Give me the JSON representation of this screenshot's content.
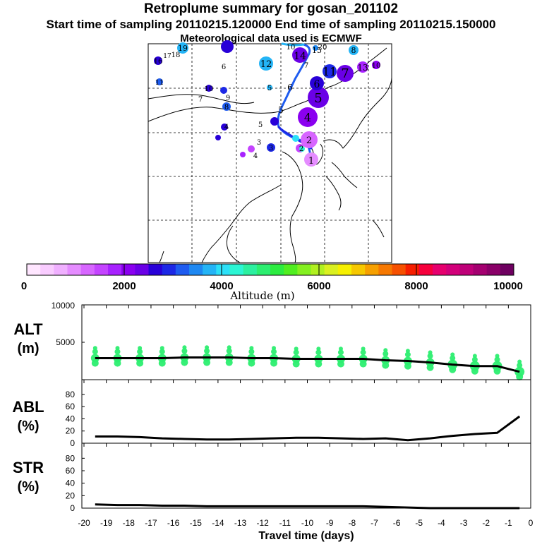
{
  "header": {
    "title": "Retroplume summary for gosan_201102",
    "times": "Start time of sampling 20110215.120000     End time of sampling 20110215.150000",
    "met": "Meteorological data used is ECMWF"
  },
  "colorbar": {
    "label": "Altitude (m)",
    "ticks": [
      "0",
      "2000",
      "4000",
      "6000",
      "8000",
      "10000"
    ],
    "colors": [
      "#ffe6ff",
      "#f9ccff",
      "#f0b0ff",
      "#e58cff",
      "#d766ff",
      "#c444ff",
      "#a822ff",
      "#8a00f0",
      "#6a00e6",
      "#2800d8",
      "#1c28e6",
      "#1e5cf0",
      "#1e88f2",
      "#24b4f6",
      "#2ce0f8",
      "#2cf6d4",
      "#2cf0a0",
      "#2cee70",
      "#2cec40",
      "#50ee20",
      "#84f020",
      "#b0f020",
      "#daf020",
      "#f6f000",
      "#f6c800",
      "#f6a000",
      "#f67800",
      "#f65000",
      "#f61e00",
      "#f6003c",
      "#e6006e",
      "#d2007a",
      "#be0078",
      "#a40070",
      "#8a0068",
      "#6e0060"
    ]
  },
  "map": {
    "labels": [
      "1",
      "2",
      "3",
      "4",
      "5",
      "6",
      "7",
      "8",
      "9",
      "10",
      "11",
      "12",
      "13",
      "14",
      "15",
      "16",
      "17",
      "18",
      "19",
      "20"
    ]
  },
  "panels": {
    "alt": {
      "label_top": "ALT",
      "label_bottom": "(m)",
      "yticks": [
        "10000",
        "5000"
      ]
    },
    "abl": {
      "label_top": "ABL",
      "label_bottom": "(%)",
      "yticks": [
        "80",
        "60",
        "40",
        "20",
        "0"
      ]
    },
    "str": {
      "label_top": "STR",
      "label_bottom": "(%)",
      "yticks": [
        "80",
        "60",
        "40",
        "20",
        "0"
      ]
    }
  },
  "xaxis": {
    "label": "Travel time (days)",
    "ticks": [
      "-20",
      "-19",
      "-18",
      "-17",
      "-16",
      "-15",
      "-14",
      "-13",
      "-12",
      "-11",
      "-10",
      "-9",
      "-8",
      "-7",
      "-6",
      "-5",
      "-4",
      "-3",
      "-2",
      "-1",
      "0"
    ]
  },
  "chart_data": [
    {
      "type": "line",
      "name": "ALT",
      "ylabel": "ALT (m)",
      "xlabel": "Travel time (days)",
      "ylim": [
        0,
        10000
      ],
      "x": [
        -0.5,
        -1.5,
        -2.5,
        -3.5,
        -4.5,
        -5.5,
        -6.5,
        -7.5,
        -8.5,
        -9.5,
        -10.5,
        -11.5,
        -12.5,
        -13.5,
        -14.5,
        -15.5,
        -16.5,
        -17.5,
        -18.5,
        -19.5
      ],
      "values": [
        1100,
        1900,
        1900,
        2100,
        2400,
        2600,
        2700,
        2900,
        2900,
        2900,
        2900,
        3000,
        3000,
        3100,
        3100,
        3100,
        3000,
        3000,
        3000,
        3000
      ]
    },
    {
      "type": "line",
      "name": "ABL",
      "ylabel": "ABL (%)",
      "xlabel": "Travel time (days)",
      "ylim": [
        0,
        100
      ],
      "x": [
        -0.5,
        -1.5,
        -2.5,
        -3.5,
        -4.5,
        -5.5,
        -6.5,
        -7.5,
        -8.5,
        -9.5,
        -10.5,
        -11.5,
        -12.5,
        -13.5,
        -14.5,
        -15.5,
        -16.5,
        -17.5,
        -18.5,
        -19.5
      ],
      "values": [
        44,
        17,
        15,
        12,
        8,
        5,
        8,
        7,
        8,
        9,
        9,
        8,
        7,
        6,
        6,
        7,
        8,
        10,
        11,
        11
      ]
    },
    {
      "type": "line",
      "name": "STR",
      "ylabel": "STR (%)",
      "xlabel": "Travel time (days)",
      "ylim": [
        0,
        100
      ],
      "x": [
        -0.5,
        -1.5,
        -2.5,
        -3.5,
        -4.5,
        -5.5,
        -6.5,
        -7.5,
        -8.5,
        -9.5,
        -10.5,
        -11.5,
        -12.5,
        -13.5,
        -14.5,
        -15.5,
        -16.5,
        -17.5,
        -18.5,
        -19.5
      ],
      "values": [
        0,
        0,
        0,
        0,
        0,
        1,
        2,
        3,
        3,
        3,
        3,
        3,
        3,
        3,
        3,
        4,
        4,
        5,
        5,
        6
      ]
    }
  ]
}
